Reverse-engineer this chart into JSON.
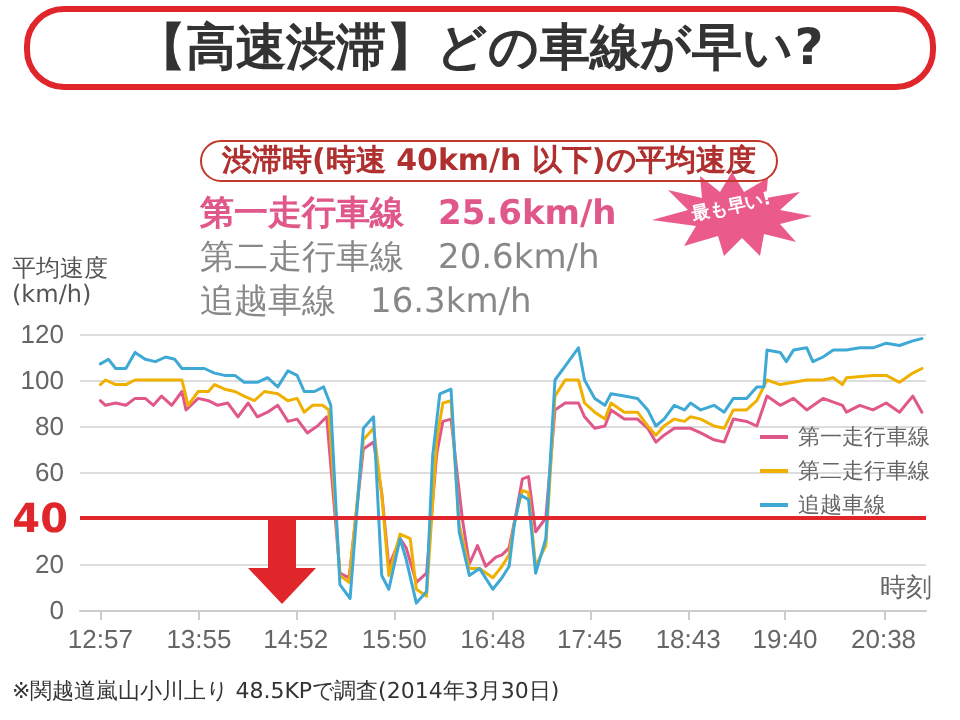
{
  "chart_data": {
    "type": "line",
    "title": "【高速渋滞】どの車線が早い?",
    "subtitle": "渋滞時(時速 40km/h 以下)の平均速度",
    "xlabel": "時刻",
    "ylabel": "平均速度\n(km/h)",
    "annotations": [
      "第一走行車線　25.6km/h",
      "第二走行車線　20.6km/h",
      "追越車線　16.3km/h",
      "最も早い!",
      "※関越道嵐山小川上り 48.5KPで調査(2014年3月30日)"
    ],
    "series": [
      {
        "name": "第一走行車線",
        "color": "#e0588a",
        "x": [
          12.95,
          13.0,
          13.1,
          13.2,
          13.29,
          13.39,
          13.47,
          13.55,
          13.65,
          13.75,
          13.79,
          13.91,
          14.01,
          14.1,
          14.2,
          14.3,
          14.4,
          14.49,
          14.59,
          14.69,
          14.79,
          14.88,
          14.98,
          15.08,
          15.17,
          15.3,
          15.39,
          15.53,
          15.63,
          15.71,
          15.78,
          15.89,
          15.95,
          16.05,
          16.15,
          16.25,
          16.31,
          16.39,
          16.5,
          16.57,
          16.65,
          16.73,
          16.83,
          16.89,
          16.96,
          17.02,
          17.09,
          17.15,
          17.22,
          17.32,
          17.41,
          17.51,
          17.64,
          17.7,
          17.8,
          17.9,
          17.96,
          18.09,
          18.22,
          18.32,
          18.4,
          18.48,
          18.58,
          18.74,
          18.84,
          18.97,
          19.07,
          19.16,
          19.29,
          19.39,
          19.49,
          19.62,
          19.75,
          19.88,
          20.04,
          20.23,
          20.27,
          20.4,
          20.53,
          20.66,
          20.79,
          20.92,
          21.01
        ],
        "values": [
          91,
          89,
          90,
          89,
          92,
          92,
          89,
          93,
          89,
          95,
          87,
          92,
          91,
          89,
          90,
          84,
          90,
          84,
          86,
          89,
          82,
          83,
          77,
          80,
          84,
          16,
          14,
          70,
          73,
          51,
          19,
          31,
          27,
          12,
          16,
          68,
          82,
          83,
          40,
          20,
          28,
          19,
          23,
          24,
          27,
          40,
          57,
          58,
          34,
          40,
          87,
          90,
          90,
          84,
          79,
          80,
          87,
          83,
          83,
          79,
          73,
          76,
          79,
          79,
          77,
          74,
          73,
          83,
          82,
          80,
          93,
          89,
          92,
          87,
          92,
          89,
          86,
          89,
          87,
          90,
          86,
          93,
          86
        ]
      },
      {
        "name": "第二走行車線",
        "color": "#f0b000",
        "x": [
          12.95,
          13.0,
          13.1,
          13.2,
          13.29,
          13.75,
          13.81,
          13.91,
          14.01,
          14.07,
          14.17,
          14.27,
          14.36,
          14.46,
          14.56,
          14.69,
          14.79,
          14.88,
          14.95,
          15.03,
          15.13,
          15.19,
          15.3,
          15.39,
          15.53,
          15.63,
          15.71,
          15.78,
          15.89,
          15.99,
          16.05,
          16.15,
          16.25,
          16.31,
          16.39,
          16.47,
          16.57,
          16.67,
          16.8,
          16.89,
          16.96,
          17.02,
          17.09,
          17.15,
          17.22,
          17.32,
          17.41,
          17.51,
          17.64,
          17.7,
          17.8,
          17.9,
          17.96,
          18.09,
          18.22,
          18.32,
          18.4,
          18.48,
          18.58,
          18.68,
          18.74,
          18.84,
          18.97,
          19.07,
          19.16,
          19.29,
          19.39,
          19.49,
          19.62,
          19.75,
          19.88,
          20.04,
          20.14,
          20.23,
          20.27,
          20.53,
          20.66,
          20.79,
          20.92,
          21.01
        ],
        "values": [
          98,
          100,
          98,
          98,
          100,
          100,
          89,
          95,
          95,
          98,
          96,
          95,
          93,
          91,
          95,
          94,
          91,
          92,
          86,
          89,
          89,
          87,
          15,
          12,
          74,
          79,
          50,
          15,
          33,
          31,
          9,
          6,
          74,
          90,
          91,
          37,
          18,
          18,
          14,
          19,
          24,
          40,
          52,
          51,
          19,
          28,
          93,
          100,
          100,
          90,
          86,
          83,
          90,
          86,
          86,
          80,
          76,
          80,
          83,
          82,
          84,
          83,
          80,
          79,
          87,
          87,
          91,
          100,
          98,
          99,
          100,
          100,
          101,
          98,
          101,
          102,
          102,
          99,
          103,
          105
        ]
      },
      {
        "name": "追越車線",
        "color": "#3fa9d5",
        "x": [
          12.95,
          13.03,
          13.1,
          13.2,
          13.29,
          13.39,
          13.49,
          13.59,
          13.68,
          13.75,
          13.81,
          13.91,
          13.97,
          14.07,
          14.17,
          14.27,
          14.36,
          14.49,
          14.59,
          14.69,
          14.79,
          14.88,
          14.95,
          15.05,
          15.14,
          15.21,
          15.3,
          15.4,
          15.53,
          15.63,
          15.71,
          15.78,
          15.89,
          15.95,
          16.05,
          16.15,
          16.21,
          16.28,
          16.39,
          16.47,
          16.57,
          16.67,
          16.8,
          16.89,
          16.96,
          17.01,
          17.07,
          17.15,
          17.22,
          17.32,
          17.41,
          17.51,
          17.64,
          17.7,
          17.8,
          17.9,
          17.96,
          18.09,
          18.22,
          18.32,
          18.4,
          18.48,
          18.58,
          18.68,
          18.74,
          18.84,
          18.97,
          19.07,
          19.16,
          19.29,
          19.39,
          19.46,
          19.49,
          19.62,
          19.68,
          19.75,
          19.88,
          19.94,
          20.04,
          20.14,
          20.27,
          20.4,
          20.53,
          20.66,
          20.79,
          20.92,
          21.01
        ],
        "values": [
          107,
          109,
          105,
          105,
          112,
          109,
          108,
          110,
          109,
          105,
          105,
          105,
          105,
          103,
          102,
          102,
          99,
          99,
          101,
          97,
          104,
          102,
          95,
          95,
          97,
          89,
          11,
          5,
          79,
          84,
          15,
          9,
          31,
          22,
          3,
          8,
          67,
          94,
          96,
          34,
          15,
          18,
          9,
          14,
          19,
          37,
          50,
          48,
          16,
          31,
          100,
          106,
          114,
          100,
          92,
          89,
          94,
          93,
          92,
          87,
          80,
          83,
          89,
          87,
          90,
          87,
          89,
          86,
          92,
          92,
          97,
          97,
          113,
          112,
          108,
          113,
          114,
          108,
          110,
          113,
          113,
          114,
          114,
          116,
          115,
          117,
          118
        ]
      }
    ],
    "xlim": [
      12.75,
      21.05
    ],
    "xticks": [
      {
        "value": 12.95,
        "label": "12:57"
      },
      {
        "value": 13.9167,
        "label": "13:55"
      },
      {
        "value": 14.8667,
        "label": "14:52"
      },
      {
        "value": 15.8333,
        "label": "15:50"
      },
      {
        "value": 16.8,
        "label": "16:48"
      },
      {
        "value": 17.75,
        "label": "17:45"
      },
      {
        "value": 18.7167,
        "label": "18:43"
      },
      {
        "value": 19.6667,
        "label": "19:40"
      },
      {
        "value": 20.6333,
        "label": "20:38"
      }
    ],
    "ylim": [
      0,
      120
    ],
    "yticks": [
      0,
      20,
      {
        "value": 40,
        "label": null
      },
      60,
      80,
      100,
      120
    ],
    "ref_lines": [
      {
        "axis": "y",
        "value": 40,
        "label": "40",
        "color": "#e0262b"
      }
    ],
    "grid": "y",
    "legend": "right",
    "marker": "none",
    "line_style": "solid"
  }
}
